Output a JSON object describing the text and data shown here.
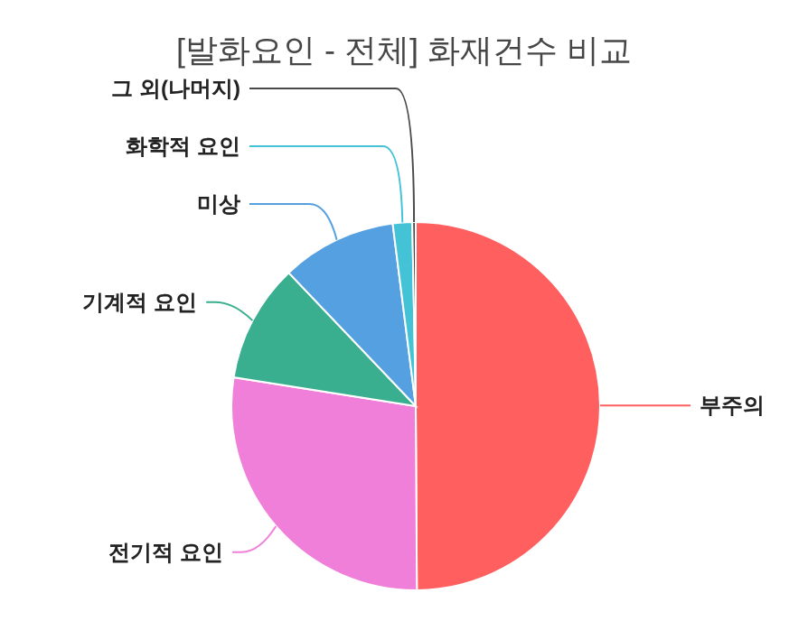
{
  "chart_data": {
    "type": "pie",
    "title": "[발화요인 - 전체] 화재건수 비교",
    "categories": [
      "부주의",
      "전기적 요인",
      "기계적 요인",
      "미상",
      "화학적 요인",
      "그 외(나머지)"
    ],
    "values": [
      49.9,
      27.6,
      10.4,
      10.1,
      1.7,
      0.3
    ],
    "colors": [
      "#ff5f5f",
      "#f07fd9",
      "#3aaf8f",
      "#55a0e0",
      "#45c3d6",
      "#4a4a4a"
    ]
  }
}
